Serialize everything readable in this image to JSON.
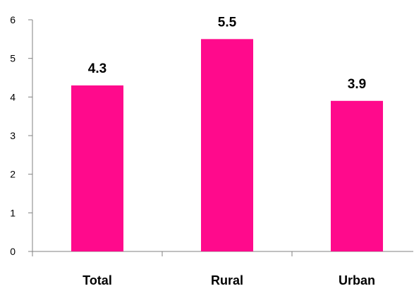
{
  "chart_data": {
    "type": "bar",
    "categories": [
      "Total",
      "Rural",
      "Urban"
    ],
    "values": [
      4.3,
      5.5,
      3.9
    ],
    "data_labels": [
      "4.3",
      "5.5",
      "3.9"
    ],
    "title": "",
    "xlabel": "",
    "ylabel": "",
    "ylim": [
      0,
      6
    ],
    "yticks": [
      "0",
      "1",
      "2",
      "3",
      "4",
      "5",
      "6"
    ],
    "grid": false,
    "legend": "none",
    "colors": {
      "bar": "#FF0A8C",
      "axis": "#808080",
      "text": "#000000"
    }
  }
}
